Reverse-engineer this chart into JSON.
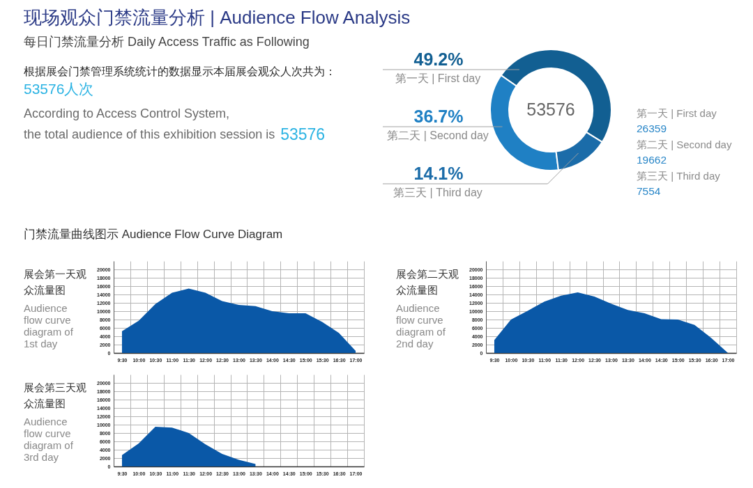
{
  "chart_data": [
    {
      "type": "other",
      "title": "现场观众门禁流量分析 | Audience Flow Analysis",
      "subtitle": "每日门禁流量分析 Daily Access Traffic as Following",
      "annotations": [
        "根据展会门禁管理系统统计的数据显示本届展会观众人次共为：",
        "53576人次",
        "According to Access Control System, the total audience of this exhibition session is",
        "53576"
      ]
    },
    {
      "type": "donut",
      "categories": [
        "第一天 | First day",
        "第二天 | Second day",
        "第三天 | Third day"
      ],
      "values": [
        49.2,
        36.7,
        14.1
      ],
      "colors": [
        "#125f92",
        "#1f80c4",
        "#1b6ca9"
      ],
      "value_labels": [
        "49.2%",
        "36.7%",
        "14.1%"
      ],
      "annotations": [
        "53576"
      ]
    },
    {
      "type": "other",
      "annotations": [
        "第一天 | First day",
        "26359",
        "第二天 | Second day",
        "19662",
        "第三天 | Third day",
        "7554"
      ]
    },
    {
      "type": "other",
      "title": "门禁流量曲线图示 Audience Flow Curve Diagram"
    },
    {
      "type": "area",
      "title": "展会第一天观众流量图",
      "subtitle": "Audience flow curve diagram of 1st day",
      "categories": [
        "9:30",
        "10:00",
        "10:30",
        "11:00",
        "11:30",
        "12:00",
        "12:30",
        "13:00",
        "13:30",
        "14:00",
        "14:30",
        "15:00",
        "15:30",
        "16:30",
        "17:00"
      ],
      "values": [
        5200,
        7700,
        11700,
        14400,
        15400,
        14400,
        12400,
        11500,
        11200,
        10000,
        9500,
        9500,
        7400,
        4800,
        500
      ],
      "color": "#0a58a7",
      "ylim": [
        0,
        22000
      ],
      "yticks": [
        0,
        2000,
        4000,
        6000,
        8000,
        10000,
        12000,
        14000,
        16000,
        18000,
        20000
      ],
      "grid": true
    },
    {
      "type": "area",
      "title": "展会第二天观众流量图",
      "subtitle": "Audience flow curve diagram of 2nd day",
      "categories": [
        "9:30",
        "10:00",
        "10:30",
        "11:00",
        "11:30",
        "12:00",
        "12:30",
        "13:00",
        "13:30",
        "14:00",
        "14:30",
        "15:00",
        "15:30",
        "16:30",
        "17:00"
      ],
      "values": [
        3100,
        8000,
        10100,
        12300,
        13700,
        14500,
        13500,
        11800,
        10300,
        9500,
        8100,
        8000,
        6700,
        3600,
        0
      ],
      "color": "#0a58a7",
      "ylim": [
        0,
        22000
      ],
      "yticks": [
        0,
        2000,
        4000,
        6000,
        8000,
        10000,
        12000,
        14000,
        16000,
        18000,
        20000
      ],
      "grid": true
    },
    {
      "type": "area",
      "title": "展会第三天观众流量图",
      "subtitle": "Audience flow curve diagram of 3rd day",
      "categories": [
        "9:30",
        "10:00",
        "10:30",
        "11:00",
        "11:30",
        "12:00",
        "12:30",
        "13:00",
        "13:30",
        "14:00",
        "14:30",
        "15:00",
        "15:30",
        "16:30",
        "17:00"
      ],
      "values": [
        2700,
        5500,
        9500,
        9300,
        8000,
        5300,
        3000,
        1600,
        600,
        null,
        null,
        null,
        null,
        null,
        null
      ],
      "color": "#0a58a7",
      "ylim": [
        0,
        22000
      ],
      "yticks": [
        0,
        2000,
        4000,
        6000,
        8000,
        10000,
        12000,
        14000,
        16000,
        18000,
        20000
      ],
      "grid": true
    }
  ]
}
